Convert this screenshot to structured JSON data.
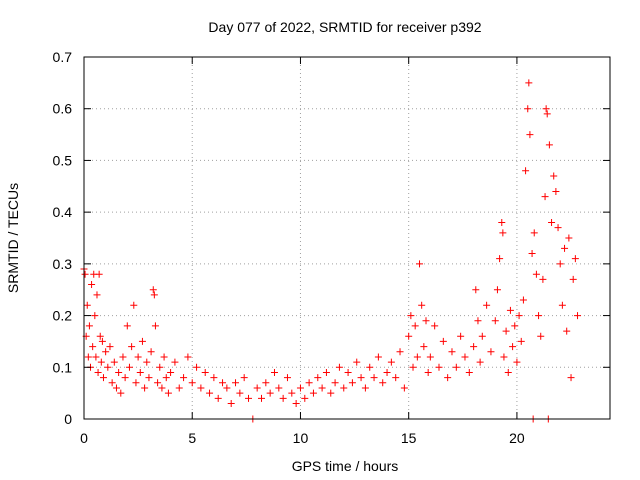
{
  "chart_data": {
    "type": "scatter",
    "title": "Day 077 of 2022, SRMTID for receiver p392",
    "xlabel": "GPS time / hours",
    "ylabel": "SRMTID / TECUs",
    "xlim": [
      0,
      24.3
    ],
    "ylim": [
      0,
      0.7
    ],
    "xticks": [
      0,
      5,
      10,
      15,
      20
    ],
    "yticks": [
      0,
      0.1,
      0.2,
      0.3,
      0.4,
      0.5,
      0.6,
      0.7
    ],
    "grid": true,
    "marker": "+",
    "color": "#ff0000",
    "series": [
      {
        "name": "SRMTID",
        "points": [
          [
            0.0,
            0.29
          ],
          [
            0.05,
            0.28
          ],
          [
            0.1,
            0.16
          ],
          [
            0.15,
            0.22
          ],
          [
            0.2,
            0.12
          ],
          [
            0.25,
            0.18
          ],
          [
            0.3,
            0.1
          ],
          [
            0.35,
            0.26
          ],
          [
            0.4,
            0.14
          ],
          [
            0.45,
            0.28
          ],
          [
            0.5,
            0.2
          ],
          [
            0.55,
            0.12
          ],
          [
            0.6,
            0.24
          ],
          [
            0.65,
            0.09
          ],
          [
            0.7,
            0.28
          ],
          [
            0.75,
            0.16
          ],
          [
            0.8,
            0.11
          ],
          [
            0.85,
            0.15
          ],
          [
            0.9,
            0.08
          ],
          [
            1.0,
            0.13
          ],
          [
            1.1,
            0.1
          ],
          [
            1.2,
            0.14
          ],
          [
            1.3,
            0.07
          ],
          [
            1.4,
            0.11
          ],
          [
            1.5,
            0.06
          ],
          [
            1.6,
            0.09
          ],
          [
            1.7,
            0.05
          ],
          [
            1.8,
            0.12
          ],
          [
            1.9,
            0.08
          ],
          [
            2.0,
            0.18
          ],
          [
            2.1,
            0.1
          ],
          [
            2.2,
            0.14
          ],
          [
            2.3,
            0.22
          ],
          [
            2.4,
            0.07
          ],
          [
            2.5,
            0.12
          ],
          [
            2.6,
            0.09
          ],
          [
            2.7,
            0.15
          ],
          [
            2.8,
            0.06
          ],
          [
            2.9,
            0.11
          ],
          [
            3.0,
            0.08
          ],
          [
            3.1,
            0.13
          ],
          [
            3.2,
            0.25
          ],
          [
            3.25,
            0.24
          ],
          [
            3.3,
            0.18
          ],
          [
            3.4,
            0.07
          ],
          [
            3.5,
            0.1
          ],
          [
            3.6,
            0.06
          ],
          [
            3.7,
            0.12
          ],
          [
            3.8,
            0.08
          ],
          [
            3.9,
            0.05
          ],
          [
            4.0,
            0.09
          ],
          [
            4.2,
            0.11
          ],
          [
            4.4,
            0.06
          ],
          [
            4.6,
            0.08
          ],
          [
            4.8,
            0.12
          ],
          [
            5.0,
            0.07
          ],
          [
            5.2,
            0.1
          ],
          [
            5.4,
            0.06
          ],
          [
            5.6,
            0.09
          ],
          [
            5.8,
            0.05
          ],
          [
            6.0,
            0.08
          ],
          [
            6.2,
            0.04
          ],
          [
            6.4,
            0.07
          ],
          [
            6.6,
            0.06
          ],
          [
            6.8,
            0.03
          ],
          [
            7.0,
            0.07
          ],
          [
            7.2,
            0.05
          ],
          [
            7.4,
            0.08
          ],
          [
            7.6,
            0.04
          ],
          [
            7.8,
            0.0
          ],
          [
            8.0,
            0.06
          ],
          [
            8.2,
            0.04
          ],
          [
            8.4,
            0.07
          ],
          [
            8.6,
            0.05
          ],
          [
            8.8,
            0.09
          ],
          [
            9.0,
            0.06
          ],
          [
            9.2,
            0.04
          ],
          [
            9.4,
            0.08
          ],
          [
            9.6,
            0.05
          ],
          [
            9.8,
            0.03
          ],
          [
            10.0,
            0.06
          ],
          [
            10.2,
            0.04
          ],
          [
            10.4,
            0.07
          ],
          [
            10.6,
            0.05
          ],
          [
            10.8,
            0.08
          ],
          [
            11.0,
            0.06
          ],
          [
            11.2,
            0.09
          ],
          [
            11.4,
            0.05
          ],
          [
            11.6,
            0.07
          ],
          [
            11.8,
            0.1
          ],
          [
            12.0,
            0.06
          ],
          [
            12.2,
            0.09
          ],
          [
            12.4,
            0.07
          ],
          [
            12.6,
            0.11
          ],
          [
            12.8,
            0.08
          ],
          [
            13.0,
            0.06
          ],
          [
            13.2,
            0.1
          ],
          [
            13.4,
            0.08
          ],
          [
            13.6,
            0.12
          ],
          [
            13.8,
            0.07
          ],
          [
            14.0,
            0.09
          ],
          [
            14.2,
            0.11
          ],
          [
            14.4,
            0.08
          ],
          [
            14.6,
            0.13
          ],
          [
            14.8,
            0.06
          ],
          [
            15.0,
            0.16
          ],
          [
            15.1,
            0.2
          ],
          [
            15.2,
            0.1
          ],
          [
            15.3,
            0.18
          ],
          [
            15.4,
            0.12
          ],
          [
            15.5,
            0.3
          ],
          [
            15.6,
            0.22
          ],
          [
            15.7,
            0.14
          ],
          [
            15.8,
            0.19
          ],
          [
            15.9,
            0.09
          ],
          [
            16.0,
            0.12
          ],
          [
            16.2,
            0.18
          ],
          [
            16.4,
            0.1
          ],
          [
            16.6,
            0.15
          ],
          [
            16.8,
            0.08
          ],
          [
            17.0,
            0.13
          ],
          [
            17.2,
            0.1
          ],
          [
            17.4,
            0.16
          ],
          [
            17.6,
            0.12
          ],
          [
            17.8,
            0.09
          ],
          [
            18.0,
            0.14
          ],
          [
            18.1,
            0.25
          ],
          [
            18.2,
            0.19
          ],
          [
            18.3,
            0.11
          ],
          [
            18.4,
            0.16
          ],
          [
            18.6,
            0.22
          ],
          [
            18.8,
            0.13
          ],
          [
            19.0,
            0.19
          ],
          [
            19.1,
            0.25
          ],
          [
            19.2,
            0.31
          ],
          [
            19.3,
            0.38
          ],
          [
            19.35,
            0.36
          ],
          [
            19.4,
            0.12
          ],
          [
            19.5,
            0.17
          ],
          [
            19.6,
            0.09
          ],
          [
            19.7,
            0.21
          ],
          [
            19.8,
            0.14
          ],
          [
            19.9,
            0.18
          ],
          [
            20.0,
            0.11
          ],
          [
            20.1,
            0.2
          ],
          [
            20.2,
            0.15
          ],
          [
            20.3,
            0.23
          ],
          [
            20.4,
            0.48
          ],
          [
            20.5,
            0.6
          ],
          [
            20.55,
            0.65
          ],
          [
            20.6,
            0.55
          ],
          [
            20.7,
            0.32
          ],
          [
            20.75,
            0.0
          ],
          [
            20.8,
            0.36
          ],
          [
            20.9,
            0.28
          ],
          [
            21.0,
            0.2
          ],
          [
            21.1,
            0.16
          ],
          [
            21.2,
            0.27
          ],
          [
            21.3,
            0.43
          ],
          [
            21.35,
            0.6
          ],
          [
            21.4,
            0.59
          ],
          [
            21.45,
            0.0
          ],
          [
            21.5,
            0.53
          ],
          [
            21.6,
            0.38
          ],
          [
            21.7,
            0.47
          ],
          [
            21.8,
            0.44
          ],
          [
            21.9,
            0.37
          ],
          [
            22.0,
            0.3
          ],
          [
            22.1,
            0.22
          ],
          [
            22.2,
            0.33
          ],
          [
            22.3,
            0.17
          ],
          [
            22.4,
            0.35
          ],
          [
            22.5,
            0.08
          ],
          [
            22.6,
            0.27
          ],
          [
            22.7,
            0.31
          ],
          [
            22.8,
            0.2
          ]
        ]
      }
    ]
  }
}
